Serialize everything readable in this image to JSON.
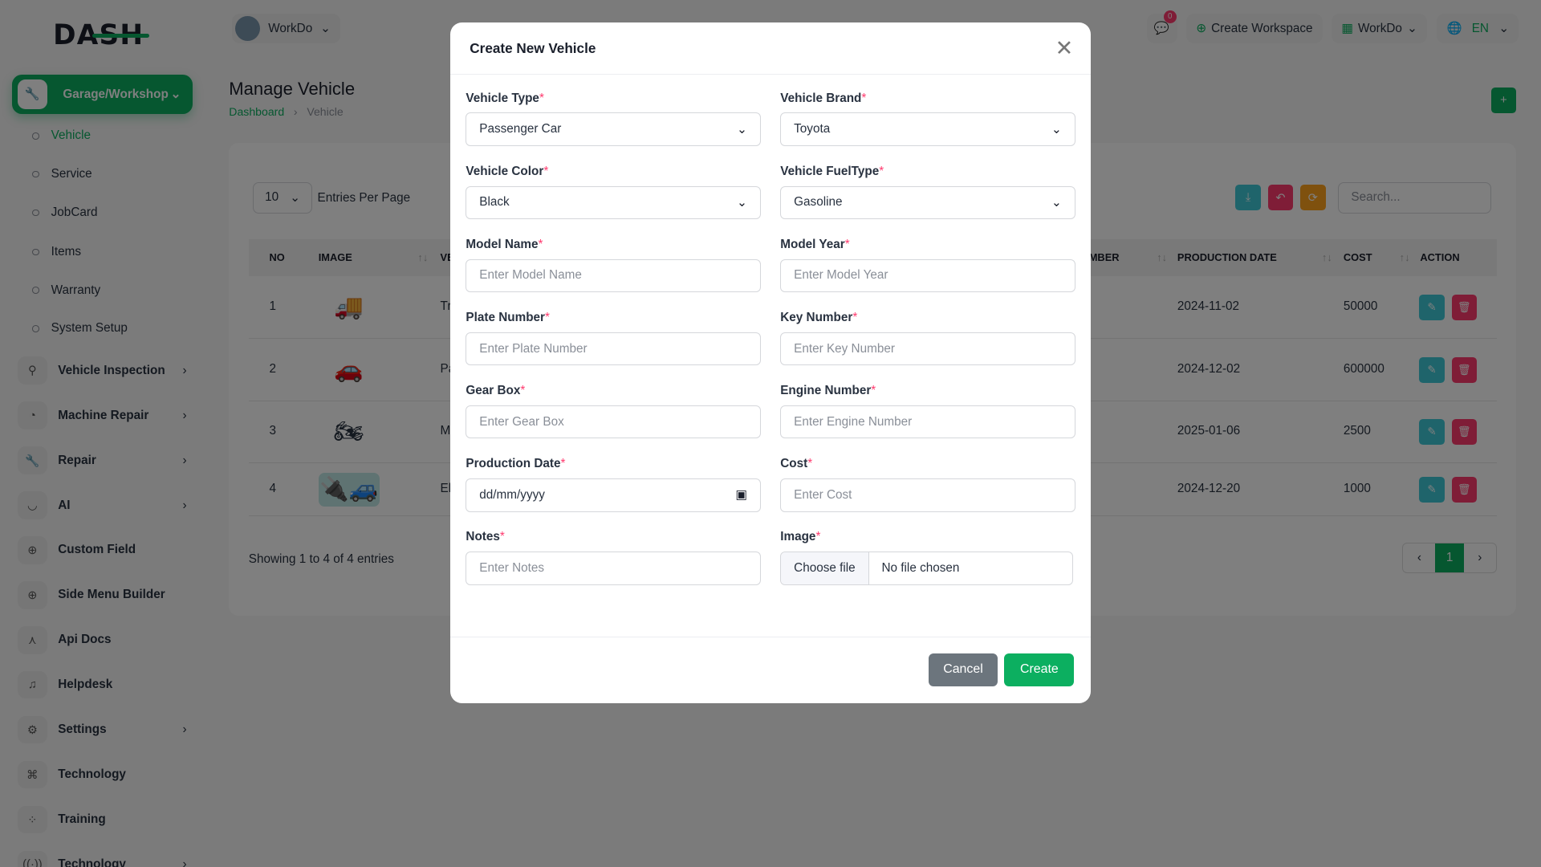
{
  "brand": {
    "logo": "DASH"
  },
  "colors": {
    "primary": "#0caf60",
    "teal": "#3ec9d6",
    "red": "#ff3a6e",
    "orange": "#ffa21d",
    "secondary": "#6c757d"
  },
  "header": {
    "workspace": "WorkDo",
    "notification_count": "0",
    "create_workspace": "Create Workspace",
    "workspace_menu": "WorkDo",
    "language": "EN"
  },
  "sidebar": {
    "active": "Garage/Workshop",
    "sub_items": [
      "Vehicle",
      "Service",
      "JobCard",
      "Items",
      "Warranty",
      "System Setup"
    ],
    "items": [
      {
        "label": "Vehicle Inspection",
        "icon": "motorbike-icon",
        "chev": true
      },
      {
        "label": "Machine Repair",
        "icon": "gauge-icon",
        "chev": true
      },
      {
        "label": "Repair",
        "icon": "wrench-icon",
        "chev": true
      },
      {
        "label": "AI",
        "icon": "ai-icon",
        "chev": true
      },
      {
        "label": "Custom Field",
        "icon": "plus-circle-icon",
        "chev": false
      },
      {
        "label": "Side Menu Builder",
        "icon": "plus-circle-icon",
        "chev": false
      },
      {
        "label": "Api Docs",
        "icon": "network-icon",
        "chev": false
      },
      {
        "label": "Helpdesk",
        "icon": "headphones-icon",
        "chev": false
      },
      {
        "label": "Settings",
        "icon": "gear-icon",
        "chev": true
      },
      {
        "label": "Technology",
        "icon": "nodes-icon",
        "chev": false
      },
      {
        "label": "Training",
        "icon": "training-icon",
        "chev": false
      },
      {
        "label": "Technology",
        "icon": "broadcast-icon",
        "chev": true
      }
    ]
  },
  "page": {
    "title": "Manage Vehicle",
    "breadcrumb": [
      "Dashboard",
      "Vehicle"
    ]
  },
  "table": {
    "entries": "10",
    "entries_label": "Entries Per Page",
    "search_placeholder": "Search...",
    "headers": {
      "no": "NO",
      "image": "IMAGE",
      "type": "VE",
      "number": "MBER",
      "production_date": "PRODUCTION DATE",
      "cost": "COST",
      "action": "ACTION"
    },
    "rows": [
      {
        "no": "1",
        "image": "truck",
        "type": "Tr",
        "date": "2024-11-02",
        "cost": "50000"
      },
      {
        "no": "2",
        "image": "red-car",
        "type": "Pa",
        "date": "2024-12-02",
        "cost": "600000"
      },
      {
        "no": "3",
        "image": "motorcycle",
        "type": "M",
        "date": "2025-01-06",
        "cost": "2500"
      },
      {
        "no": "4",
        "image": "electric-car",
        "type": "El",
        "date": "2024-12-20",
        "cost": "1000"
      }
    ],
    "showing": "Showing 1 to 4 of 4 entries",
    "page": "1"
  },
  "modal": {
    "title": "Create New Vehicle",
    "fields": [
      {
        "label": "Vehicle Type",
        "value": "Passenger Car",
        "kind": "select"
      },
      {
        "label": "Vehicle Brand",
        "value": "Toyota",
        "kind": "select"
      },
      {
        "label": "Vehicle Color",
        "value": "Black",
        "kind": "select"
      },
      {
        "label": "Vehicle FuelType",
        "value": "Gasoline",
        "kind": "select"
      },
      {
        "label": "Model Name",
        "placeholder": "Enter Model Name"
      },
      {
        "label": "Model Year",
        "placeholder": "Enter Model Year"
      },
      {
        "label": "Plate Number",
        "placeholder": "Enter Plate Number"
      },
      {
        "label": "Key Number",
        "placeholder": "Enter Key Number"
      },
      {
        "label": "Gear Box",
        "placeholder": "Enter Gear Box"
      },
      {
        "label": "Engine Number",
        "placeholder": "Enter Engine Number"
      },
      {
        "label": "Production Date",
        "value": "dd/mm/yyyy",
        "kind": "date"
      },
      {
        "label": "Cost",
        "placeholder": "Enter Cost"
      },
      {
        "label": "Notes",
        "placeholder": "Enter Notes"
      },
      {
        "label": "Image",
        "kind": "file",
        "button": "Choose file",
        "value": "No file chosen"
      }
    ],
    "cancel": "Cancel",
    "create": "Create"
  }
}
